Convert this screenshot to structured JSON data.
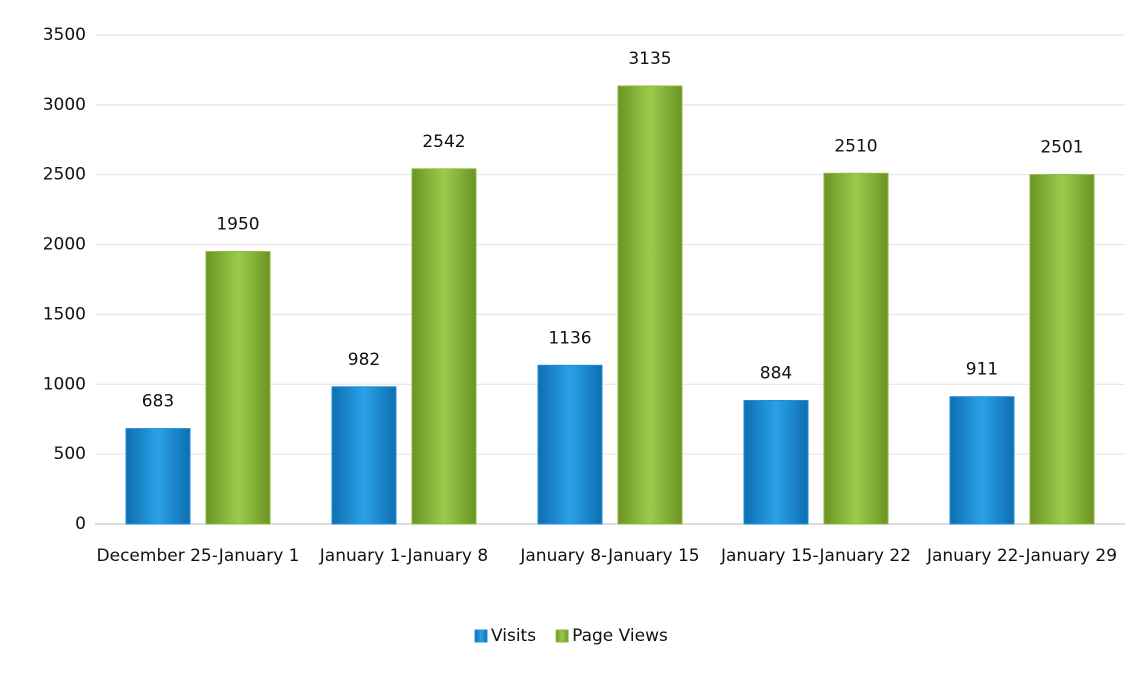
{
  "chart_data": {
    "type": "bar",
    "categories": [
      "December 25-January 1",
      "January 1-January 8",
      "January 8-January 15",
      "January 15-January 22",
      "January 22-January 29"
    ],
    "series": [
      {
        "name": "Visits",
        "color": "#1e8fd8",
        "values": [
          683,
          982,
          1136,
          884,
          911
        ]
      },
      {
        "name": "Page Views",
        "color": "#8cba3c",
        "values": [
          1950,
          2542,
          3135,
          2510,
          2501
        ]
      }
    ],
    "ylim": [
      0,
      3500
    ],
    "yticks": [
      0,
      500,
      1000,
      1500,
      2000,
      2500,
      3000,
      3500
    ],
    "grid": true,
    "legend": "bottom"
  }
}
